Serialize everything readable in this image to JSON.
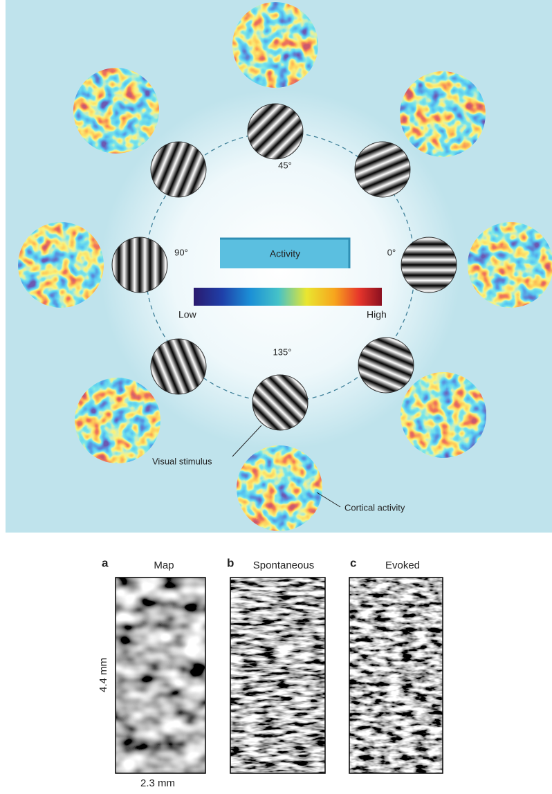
{
  "top_panel": {
    "legend": {
      "title": "Activity",
      "low": "Low",
      "high": "High"
    },
    "angles": [
      "45°",
      "0°",
      "90°",
      "135°"
    ],
    "callouts": {
      "stimulus": "Visual stimulus",
      "activity": "Cortical activity"
    }
  },
  "bottom_panel": {
    "panels": [
      {
        "letter": "a",
        "title": "Map"
      },
      {
        "letter": "b",
        "title": "Spontaneous"
      },
      {
        "letter": "c",
        "title": "Evoked"
      }
    ],
    "y_scale": "4.4 mm",
    "x_scale": "2.3 mm"
  }
}
